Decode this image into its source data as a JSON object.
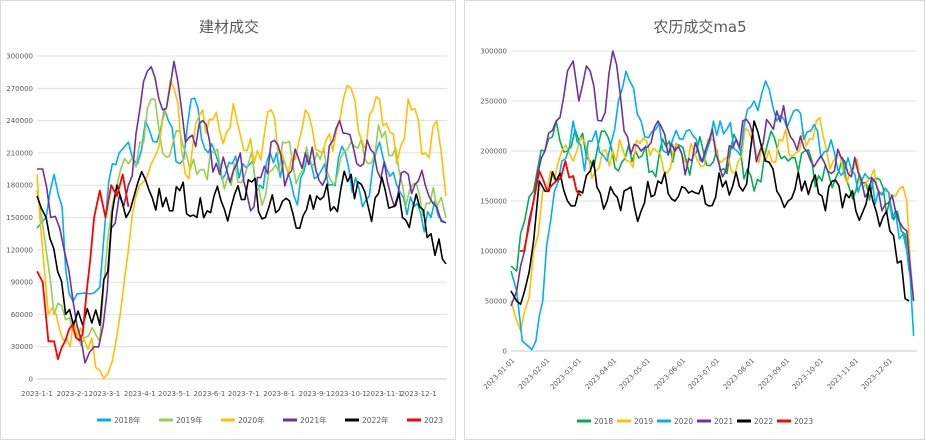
{
  "chart_data": [
    {
      "type": "line",
      "title": "建材成交",
      "xlabel": "",
      "ylabel": "",
      "ylim": [
        0,
        300000
      ],
      "yticks": [
        0,
        30000,
        60000,
        90000,
        120000,
        150000,
        180000,
        210000,
        240000,
        270000,
        300000
      ],
      "ytick_labels": [
        "0",
        "30000",
        "60000",
        "90000",
        "120000",
        "150000",
        "180000",
        "210000",
        "240000",
        "270000",
        "300000"
      ],
      "xticks": [
        "2023-1-1",
        "2023-2-1",
        "2023-3-1",
        "2023-4-1",
        "2023-5-1",
        "2023-6-1",
        "2023-7-1",
        "2023-8-1",
        "2023-9-1",
        "2023-10-1",
        "2023-11-1",
        "2023-12-1"
      ],
      "x_day_ticks": [
        0,
        31,
        59,
        90,
        120,
        151,
        181,
        212,
        243,
        273,
        304,
        334
      ],
      "grid": true,
      "legend": "bottom",
      "series": [
        {
          "name": "2018年",
          "color": "#00B0F0",
          "days": [
            0,
            8,
            15,
            22,
            28,
            35,
            42,
            50,
            55,
            60,
            66,
            72,
            80,
            88,
            95,
            105,
            115,
            125,
            135,
            150,
            165,
            180,
            195,
            210,
            225,
            240,
            255,
            270,
            285,
            300,
            315,
            330,
            345,
            358
          ],
          "values": [
            140000,
            150000,
            190000,
            160000,
            80000,
            79000,
            80000,
            80000,
            85000,
            150000,
            200000,
            210000,
            220000,
            200000,
            240000,
            220000,
            240000,
            200000,
            260000,
            210000,
            190000,
            200000,
            180000,
            210000,
            170000,
            200000,
            180000,
            210000,
            160000,
            220000,
            180000,
            160000,
            150000,
            145000
          ]
        },
        {
          "name": "2019年",
          "color": "#92D050",
          "days": [
            0,
            8,
            15,
            25,
            35,
            45,
            55,
            62,
            70,
            80,
            90,
            100,
            110,
            125,
            140,
            155,
            170,
            185,
            200,
            215,
            230,
            245,
            260,
            275,
            290,
            305,
            320,
            335,
            350,
            358
          ],
          "values": [
            175000,
            120000,
            60000,
            55000,
            50000,
            40000,
            35000,
            130000,
            180000,
            200000,
            220000,
            260000,
            210000,
            230000,
            190000,
            210000,
            180000,
            200000,
            170000,
            220000,
            190000,
            210000,
            180000,
            220000,
            200000,
            230000,
            180000,
            170000,
            160000,
            150000
          ]
        },
        {
          "name": "2020年",
          "color": "#FFC000",
          "days": [
            0,
            10,
            20,
            35,
            48,
            55,
            62,
            70,
            80,
            90,
            100,
            110,
            120,
            130,
            145,
            160,
            175,
            190,
            205,
            220,
            235,
            250,
            265,
            275,
            285,
            300,
            315,
            325,
            340,
            350,
            358
          ],
          "values": [
            190000,
            60000,
            45000,
            40000,
            38000,
            8000,
            5000,
            40000,
            120000,
            180000,
            200000,
            240000,
            270000,
            190000,
            250000,
            230000,
            240000,
            200000,
            250000,
            190000,
            250000,
            210000,
            240000,
            270000,
            220000,
            260000,
            200000,
            260000,
            210000,
            240000,
            170000
          ]
        },
        {
          "name": "2021年",
          "color": "#7030A0",
          "days": [
            0,
            5,
            12,
            20,
            28,
            35,
            42,
            50,
            58,
            65,
            72,
            80,
            90,
            100,
            110,
            120,
            130,
            145,
            160,
            175,
            190,
            205,
            220,
            235,
            250,
            265,
            280,
            295,
            310,
            325,
            340,
            350,
            358
          ],
          "values": [
            195000,
            195000,
            150000,
            140000,
            100000,
            50000,
            15000,
            30000,
            50000,
            140000,
            170000,
            180000,
            250000,
            290000,
            250000,
            295000,
            220000,
            240000,
            190000,
            200000,
            160000,
            220000,
            190000,
            210000,
            180000,
            240000,
            200000,
            210000,
            170000,
            190000,
            180000,
            160000,
            145000
          ]
        },
        {
          "name": "2022年",
          "color": "#000000",
          "days": [
            0,
            8,
            18,
            25,
            32,
            40,
            48,
            55,
            62,
            70,
            78,
            85,
            95,
            110,
            125,
            140,
            155,
            170,
            185,
            200,
            215,
            230,
            245,
            260,
            275,
            290,
            305,
            320,
            335,
            345,
            352,
            358
          ],
          "values": [
            170000,
            150000,
            100000,
            60000,
            50000,
            50000,
            52000,
            50000,
            100000,
            180000,
            150000,
            170000,
            185000,
            160000,
            175000,
            150000,
            170000,
            160000,
            185000,
            150000,
            165000,
            140000,
            170000,
            160000,
            190000,
            160000,
            175000,
            150000,
            160000,
            135000,
            130000,
            107000
          ]
        },
        {
          "name": "2023",
          "color": "#FF0000",
          "days": [
            0,
            5,
            10,
            15,
            25,
            40,
            50,
            55,
            60,
            65,
            70,
            75,
            80
          ],
          "values": [
            100000,
            90000,
            35000,
            35000,
            36000,
            42000,
            150000,
            175000,
            150000,
            180000,
            170000,
            190000,
            160000
          ]
        }
      ]
    },
    {
      "type": "line",
      "title": "农历成交ma5",
      "xlabel": "",
      "ylabel": "",
      "ylim": [
        0,
        300000
      ],
      "yticks": [
        0,
        50000,
        100000,
        150000,
        200000,
        250000,
        300000
      ],
      "ytick_labels": [
        "0",
        "50000",
        "100000",
        "150000",
        "200000",
        "250000",
        "300000"
      ],
      "xticks": [
        "2023-01-01",
        "2023-02-01",
        "2023-03-01",
        "2023-04-01",
        "2023-05-01",
        "2023-06-01",
        "2023-07-01",
        "2023-08-01",
        "2023-09-01",
        "2023-10-01",
        "2023-11-01",
        "2023-12-01"
      ],
      "x_day_ticks": [
        0,
        31,
        59,
        90,
        120,
        151,
        181,
        212,
        243,
        273,
        304,
        334
      ],
      "grid": true,
      "legend": "bottom",
      "series": [
        {
          "name": "2018",
          "color": "#00B050",
          "days": [
            0,
            5,
            12,
            20,
            30,
            40,
            50,
            60,
            70,
            80,
            95,
            110,
            125,
            140,
            155,
            170,
            185,
            200,
            215,
            230,
            245,
            260,
            275,
            290,
            305,
            320,
            335,
            345,
            352
          ],
          "values": [
            85000,
            80000,
            130000,
            160000,
            200000,
            230000,
            200000,
            210000,
            190000,
            220000,
            180000,
            200000,
            180000,
            210000,
            190000,
            200000,
            180000,
            210000,
            160000,
            220000,
            190000,
            200000,
            170000,
            180000,
            160000,
            170000,
            150000,
            120000,
            80000
          ]
        },
        {
          "name": "2019",
          "color": "#FFC000",
          "days": [
            0,
            5,
            12,
            20,
            28,
            35,
            45,
            55,
            65,
            75,
            90,
            105,
            120,
            135,
            150,
            165,
            180,
            195,
            210,
            225,
            240,
            255,
            270,
            285,
            300,
            315,
            330,
            340,
            350,
            356
          ],
          "values": [
            50000,
            30000,
            40000,
            100000,
            160000,
            180000,
            200000,
            190000,
            210000,
            180000,
            200000,
            190000,
            210000,
            180000,
            200000,
            190000,
            210000,
            180000,
            220000,
            190000,
            210000,
            200000,
            230000,
            190000,
            180000,
            170000,
            160000,
            155000,
            150000,
            50000
          ]
        },
        {
          "name": "2020",
          "color": "#00B0F0",
          "days": [
            0,
            5,
            10,
            15,
            22,
            28,
            35,
            45,
            55,
            65,
            75,
            85,
            95,
            105,
            115,
            125,
            140,
            155,
            170,
            185,
            200,
            215,
            225,
            235,
            250,
            265,
            280,
            295,
            310,
            325,
            340,
            350,
            356
          ],
          "values": [
            80000,
            60000,
            10000,
            5000,
            10000,
            50000,
            130000,
            190000,
            230000,
            180000,
            220000,
            190000,
            250000,
            270000,
            230000,
            220000,
            200000,
            220000,
            190000,
            230000,
            200000,
            250000,
            270000,
            230000,
            240000,
            220000,
            200000,
            180000,
            170000,
            160000,
            140000,
            100000,
            15000
          ]
        },
        {
          "name": "2021",
          "color": "#7030A0",
          "days": [
            0,
            5,
            12,
            20,
            30,
            40,
            50,
            55,
            60,
            70,
            80,
            90,
            100,
            115,
            130,
            145,
            160,
            175,
            190,
            205,
            220,
            235,
            250,
            265,
            280,
            295,
            310,
            325,
            340,
            350,
            356
          ],
          "values": [
            45000,
            60000,
            100000,
            150000,
            200000,
            230000,
            280000,
            290000,
            250000,
            280000,
            230000,
            300000,
            220000,
            200000,
            230000,
            200000,
            190000,
            210000,
            180000,
            230000,
            200000,
            240000,
            210000,
            190000,
            180000,
            190000,
            170000,
            160000,
            140000,
            120000,
            50000
          ]
        },
        {
          "name": "2022",
          "color": "#000000",
          "days": [
            0,
            5,
            12,
            20,
            25,
            30,
            40,
            50,
            60,
            70,
            85,
            100,
            115,
            130,
            145,
            160,
            175,
            190,
            205,
            215,
            225,
            235,
            245,
            260,
            275,
            290,
            305,
            320,
            335,
            345,
            352
          ],
          "values": [
            60000,
            50000,
            60000,
            110000,
            170000,
            160000,
            170000,
            150000,
            160000,
            180000,
            150000,
            160000,
            140000,
            170000,
            150000,
            160000,
            145000,
            170000,
            160000,
            230000,
            190000,
            160000,
            150000,
            170000,
            155000,
            165000,
            140000,
            150000,
            120000,
            90000,
            50000
          ]
        },
        {
          "name": "2023",
          "color": "#FF0000",
          "days": [
            8,
            15,
            20,
            25,
            32,
            40,
            48,
            55,
            58,
            62
          ],
          "values": [
            100000,
            120000,
            150000,
            180000,
            160000,
            170000,
            190000,
            175000,
            160000,
            155000
          ]
        }
      ]
    }
  ]
}
